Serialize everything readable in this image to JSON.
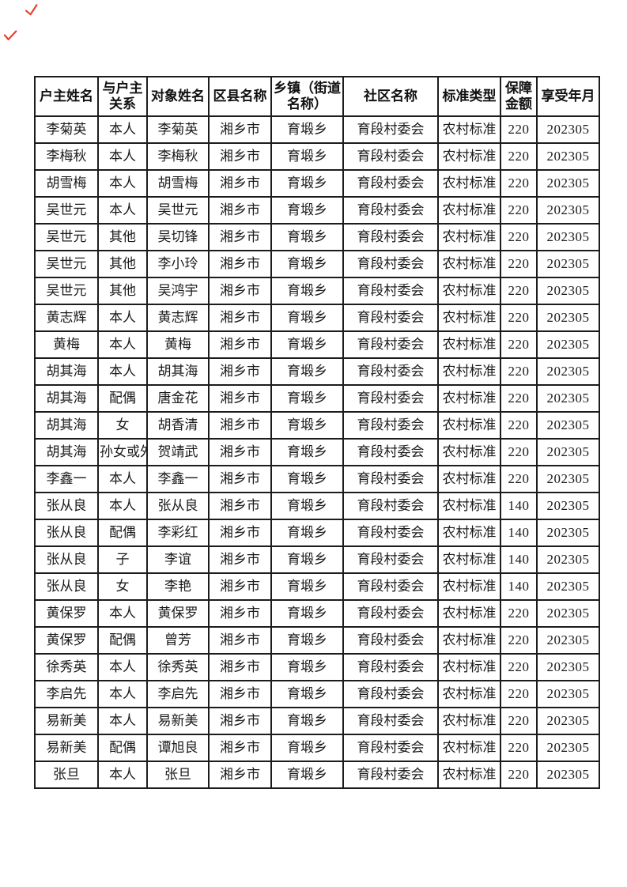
{
  "page": {
    "background": "#ffffff",
    "border_color": "#1c1c1c",
    "mark_color": "#e8402a"
  },
  "marks": {
    "top_left_tick_1": "red-check-mark",
    "top_left_tick_2": "red-check-mark"
  },
  "table": {
    "columns": [
      {
        "label": "户主姓名"
      },
      {
        "label": "与户主关系"
      },
      {
        "label": "对象姓名"
      },
      {
        "label": "区县名称"
      },
      {
        "label": "乡镇（街道名称）"
      },
      {
        "label": "社区名称"
      },
      {
        "label": "标准类型"
      },
      {
        "label": "保障金额"
      },
      {
        "label": "享受年月"
      }
    ],
    "rows": [
      [
        "李菊英",
        "本人",
        "李菊英",
        "湘乡市",
        "育塅乡",
        "育段村委会",
        "农村标准",
        "220",
        "202305"
      ],
      [
        "李梅秋",
        "本人",
        "李梅秋",
        "湘乡市",
        "育塅乡",
        "育段村委会",
        "农村标准",
        "220",
        "202305"
      ],
      [
        "胡雪梅",
        "本人",
        "胡雪梅",
        "湘乡市",
        "育塅乡",
        "育段村委会",
        "农村标准",
        "220",
        "202305"
      ],
      [
        "吴世元",
        "本人",
        "吴世元",
        "湘乡市",
        "育塅乡",
        "育段村委会",
        "农村标准",
        "220",
        "202305"
      ],
      [
        "吴世元",
        "其他",
        "吴切锋",
        "湘乡市",
        "育塅乡",
        "育段村委会",
        "农村标准",
        "220",
        "202305"
      ],
      [
        "吴世元",
        "其他",
        "李小玲",
        "湘乡市",
        "育塅乡",
        "育段村委会",
        "农村标准",
        "220",
        "202305"
      ],
      [
        "吴世元",
        "其他",
        "吴鸿宇",
        "湘乡市",
        "育塅乡",
        "育段村委会",
        "农村标准",
        "220",
        "202305"
      ],
      [
        "黄志辉",
        "本人",
        "黄志辉",
        "湘乡市",
        "育塅乡",
        "育段村委会",
        "农村标准",
        "220",
        "202305"
      ],
      [
        "黄梅",
        "本人",
        "黄梅",
        "湘乡市",
        "育塅乡",
        "育段村委会",
        "农村标准",
        "220",
        "202305"
      ],
      [
        "胡其海",
        "本人",
        "胡其海",
        "湘乡市",
        "育塅乡",
        "育段村委会",
        "农村标准",
        "220",
        "202305"
      ],
      [
        "胡其海",
        "配偶",
        "唐金花",
        "湘乡市",
        "育塅乡",
        "育段村委会",
        "农村标准",
        "220",
        "202305"
      ],
      [
        "胡其海",
        "女",
        "胡香清",
        "湘乡市",
        "育塅乡",
        "育段村委会",
        "农村标准",
        "220",
        "202305"
      ],
      [
        "胡其海",
        "孙女或外孙子",
        "贺靖武",
        "湘乡市",
        "育塅乡",
        "育段村委会",
        "农村标准",
        "220",
        "202305"
      ],
      [
        "李鑫一",
        "本人",
        "李鑫一",
        "湘乡市",
        "育塅乡",
        "育段村委会",
        "农村标准",
        "220",
        "202305"
      ],
      [
        "张从良",
        "本人",
        "张从良",
        "湘乡市",
        "育塅乡",
        "育段村委会",
        "农村标准",
        "140",
        "202305"
      ],
      [
        "张从良",
        "配偶",
        "李彩红",
        "湘乡市",
        "育塅乡",
        "育段村委会",
        "农村标准",
        "140",
        "202305"
      ],
      [
        "张从良",
        "子",
        "李谊",
        "湘乡市",
        "育塅乡",
        "育段村委会",
        "农村标准",
        "140",
        "202305"
      ],
      [
        "张从良",
        "女",
        "李艳",
        "湘乡市",
        "育塅乡",
        "育段村委会",
        "农村标准",
        "140",
        "202305"
      ],
      [
        "黄保罗",
        "本人",
        "黄保罗",
        "湘乡市",
        "育塅乡",
        "育段村委会",
        "农村标准",
        "220",
        "202305"
      ],
      [
        "黄保罗",
        "配偶",
        "曾芳",
        "湘乡市",
        "育塅乡",
        "育段村委会",
        "农村标准",
        "220",
        "202305"
      ],
      [
        "徐秀英",
        "本人",
        "徐秀英",
        "湘乡市",
        "育塅乡",
        "育段村委会",
        "农村标准",
        "220",
        "202305"
      ],
      [
        "李启先",
        "本人",
        "李启先",
        "湘乡市",
        "育塅乡",
        "育段村委会",
        "农村标准",
        "220",
        "202305"
      ],
      [
        "易新美",
        "本人",
        "易新美",
        "湘乡市",
        "育塅乡",
        "育段村委会",
        "农村标准",
        "220",
        "202305"
      ],
      [
        "易新美",
        "配偶",
        "谭旭良",
        "湘乡市",
        "育塅乡",
        "育段村委会",
        "农村标准",
        "220",
        "202305"
      ],
      [
        "张旦",
        "本人",
        "张旦",
        "湘乡市",
        "育塅乡",
        "育段村委会",
        "农村标准",
        "220",
        "202305"
      ]
    ]
  }
}
